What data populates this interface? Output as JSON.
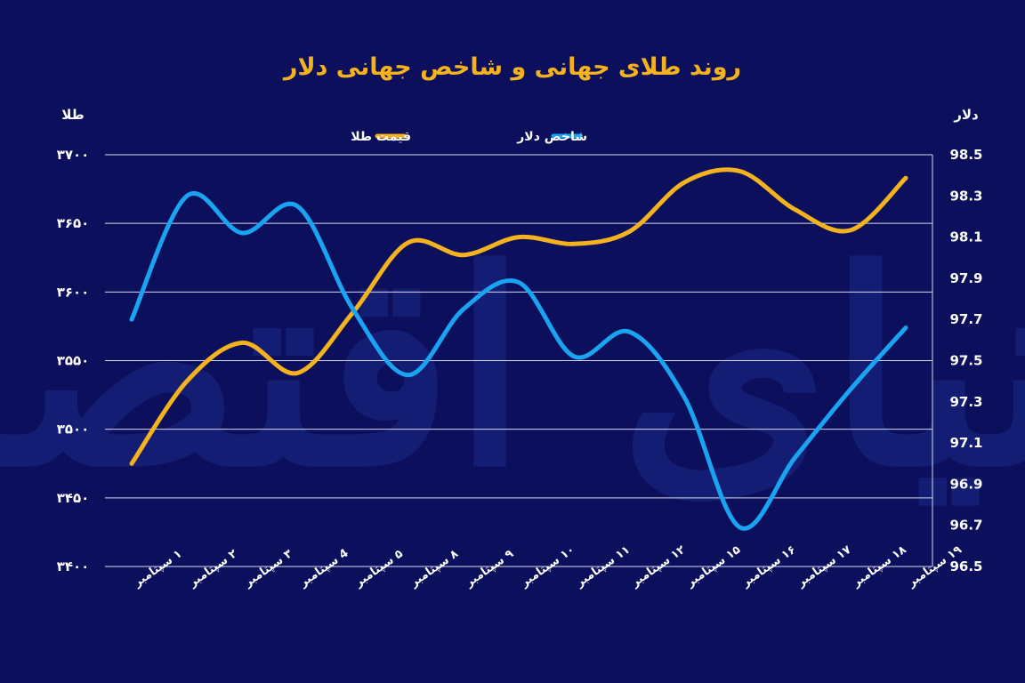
{
  "chart_data": {
    "type": "line",
    "title": "روند طلای جهانی و شاخص جهانی دلار",
    "ylabel_left": "طلا",
    "ylabel_right": "دلار",
    "categories": [
      "۱ سپتامبر",
      "۲ سپتامبر",
      "۳ سپتامبر",
      "4 سپتامبر",
      "۵ سپتامبر",
      "۸ سپتامبر",
      "۹ سپتامبر",
      "۱۰ سپتامبر",
      "۱۱ سپتامبر",
      "۱۲ سپتامبر",
      "۱۵ سپتامبر",
      "۱۶ سپتامبر",
      "۱۷ سپتامبر",
      "۱۸ سپتامبر",
      "۱۹ سپتامبر"
    ],
    "ylim_left": [
      3400,
      3700
    ],
    "ylim_right": [
      96.5,
      98.5
    ],
    "yticks_left": [
      "۳۷۰۰",
      "۳۶۵۰",
      "۳۶۰۰",
      "۳۵۵۰",
      "۳۵۰۰",
      "۳۴۵۰",
      "۳۴۰۰"
    ],
    "yticks_right": [
      "98.5",
      "98.3",
      "98.1",
      "97.9",
      "97.7",
      "97.5",
      "97.3",
      "97.1",
      "96.9",
      "96.7",
      "96.5"
    ],
    "grid": true,
    "legend_position": "top-center",
    "series": [
      {
        "name": "قیمت طلا",
        "axis": "left",
        "color": "#f5b21f",
        "values": [
          3475,
          3535,
          3563,
          3541,
          3585,
          3636,
          3627,
          3640,
          3635,
          3644,
          3680,
          3688,
          3660,
          3645,
          3683
        ]
      },
      {
        "name": "شاخص دلار",
        "axis": "right",
        "color": "#1aa3f0",
        "values": [
          97.7,
          98.3,
          98.12,
          98.25,
          97.75,
          97.43,
          97.75,
          97.88,
          97.52,
          97.64,
          97.32,
          96.69,
          97.03,
          97.36,
          97.66
        ]
      }
    ]
  },
  "watermark": "دنیای اقتصاد"
}
